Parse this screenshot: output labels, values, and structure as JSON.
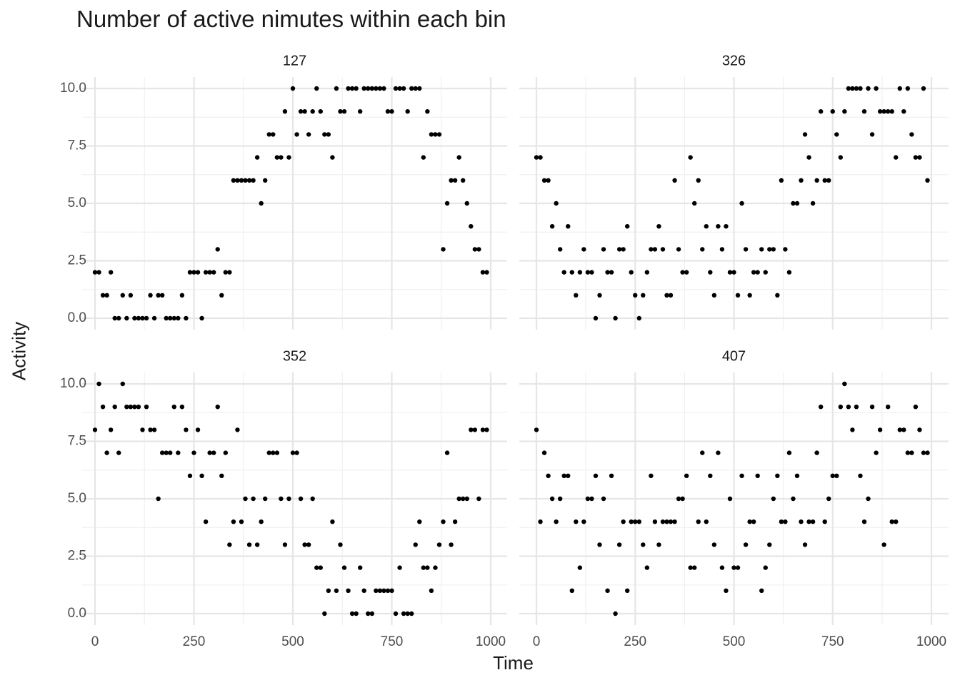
{
  "figure": {
    "title": "Number of active nimutes within each bin",
    "xlabel": "Time",
    "ylabel": "Activity"
  },
  "colors": {
    "background": "#ffffff",
    "grid_major": "#e6e6e6",
    "grid_minor": "#f0f0f0",
    "points": "#000000",
    "text": "#4d4d4d"
  },
  "chart_data": {
    "type": "scatter",
    "faceted": true,
    "grid": true,
    "xlim": [
      0,
      1000
    ],
    "ylim": [
      0,
      10
    ],
    "xticks": [
      0,
      250,
      500,
      750,
      1000
    ],
    "yticks": [
      0.0,
      2.5,
      5.0,
      7.5,
      10.0
    ],
    "xtick_labels": [
      "0",
      "250",
      "500",
      "750",
      "1000"
    ],
    "ytick_labels": [
      "0.0",
      "2.5",
      "5.0",
      "7.5",
      "10.0"
    ],
    "facets": [
      {
        "label": "127",
        "x": [
          0,
          10,
          20,
          30,
          40,
          50,
          60,
          70,
          80,
          90,
          100,
          110,
          120,
          130,
          140,
          150,
          160,
          170,
          180,
          190,
          200,
          210,
          220,
          230,
          240,
          250,
          260,
          270,
          280,
          290,
          300,
          310,
          320,
          330,
          340,
          350,
          360,
          370,
          380,
          390,
          400,
          410,
          420,
          430,
          440,
          450,
          460,
          470,
          480,
          490,
          500,
          510,
          520,
          530,
          540,
          550,
          560,
          570,
          580,
          590,
          600,
          610,
          620,
          630,
          640,
          650,
          660,
          670,
          680,
          690,
          700,
          710,
          720,
          730,
          740,
          750,
          760,
          770,
          780,
          790,
          800,
          810,
          820,
          830,
          840,
          850,
          860,
          870,
          880,
          890,
          900,
          910,
          920,
          930,
          940,
          950,
          960,
          970,
          980,
          990
        ],
        "y": [
          2,
          2,
          1,
          1,
          2,
          0,
          0,
          1,
          0,
          1,
          0,
          0,
          0,
          0,
          1,
          0,
          1,
          1,
          0,
          0,
          0,
          0,
          1,
          0,
          2,
          2,
          2,
          0,
          2,
          2,
          2,
          3,
          1,
          2,
          2,
          6,
          6,
          6,
          6,
          6,
          6,
          7,
          5,
          6,
          8,
          8,
          7,
          7,
          9,
          7,
          10,
          8,
          9,
          9,
          8,
          9,
          10,
          9,
          8,
          8,
          7,
          10,
          9,
          9,
          10,
          10,
          10,
          9,
          10,
          10,
          10,
          10,
          10,
          10,
          9,
          9,
          10,
          10,
          10,
          9,
          10,
          10,
          10,
          7,
          9,
          8,
          8,
          8,
          3,
          5,
          6,
          6,
          7,
          6,
          5,
          4,
          3,
          3,
          2,
          2
        ]
      },
      {
        "label": "326",
        "x": [
          0,
          10,
          20,
          30,
          40,
          50,
          60,
          70,
          80,
          90,
          100,
          110,
          120,
          130,
          140,
          150,
          160,
          170,
          180,
          190,
          200,
          210,
          220,
          230,
          240,
          250,
          260,
          270,
          280,
          290,
          300,
          310,
          320,
          330,
          340,
          350,
          360,
          370,
          380,
          390,
          400,
          410,
          420,
          430,
          440,
          450,
          460,
          470,
          480,
          490,
          500,
          510,
          520,
          530,
          540,
          550,
          560,
          570,
          580,
          590,
          600,
          610,
          620,
          630,
          640,
          650,
          660,
          670,
          680,
          690,
          700,
          710,
          720,
          730,
          740,
          750,
          760,
          770,
          780,
          790,
          800,
          810,
          820,
          830,
          840,
          850,
          860,
          870,
          880,
          890,
          900,
          910,
          920,
          930,
          940,
          950,
          960,
          970,
          980,
          990
        ],
        "y": [
          7,
          7,
          6,
          6,
          4,
          5,
          3,
          2,
          4,
          2,
          1,
          2,
          3,
          2,
          2,
          0,
          1,
          3,
          2,
          2,
          0,
          3,
          3,
          4,
          2,
          1,
          0,
          1,
          2,
          3,
          3,
          4,
          3,
          1,
          1,
          6,
          3,
          2,
          2,
          7,
          5,
          6,
          3,
          4,
          2,
          1,
          4,
          3,
          4,
          2,
          2,
          1,
          5,
          3,
          1,
          2,
          2,
          3,
          2,
          3,
          3,
          1,
          6,
          3,
          2,
          5,
          5,
          6,
          8,
          7,
          5,
          6,
          9,
          6,
          6,
          9,
          8,
          7,
          9,
          10,
          10,
          10,
          10,
          9,
          10,
          8,
          10,
          9,
          9,
          9,
          9,
          7,
          10,
          9,
          10,
          8,
          7,
          7,
          10,
          6
        ]
      },
      {
        "label": "352",
        "x": [
          0,
          10,
          20,
          30,
          40,
          50,
          60,
          70,
          80,
          90,
          100,
          110,
          120,
          130,
          140,
          150,
          160,
          170,
          180,
          190,
          200,
          210,
          220,
          230,
          240,
          250,
          260,
          270,
          280,
          290,
          300,
          310,
          320,
          330,
          340,
          350,
          360,
          370,
          380,
          390,
          400,
          410,
          420,
          430,
          440,
          450,
          460,
          470,
          480,
          490,
          500,
          510,
          520,
          530,
          540,
          550,
          560,
          570,
          580,
          590,
          600,
          610,
          620,
          630,
          640,
          650,
          660,
          670,
          680,
          690,
          700,
          710,
          720,
          730,
          740,
          750,
          760,
          770,
          780,
          790,
          800,
          810,
          820,
          830,
          840,
          850,
          860,
          870,
          880,
          890,
          900,
          910,
          920,
          930,
          940,
          950,
          960,
          970,
          980,
          990
        ],
        "y": [
          8,
          10,
          9,
          7,
          8,
          9,
          7,
          10,
          9,
          9,
          9,
          9,
          8,
          9,
          8,
          8,
          5,
          7,
          7,
          7,
          9,
          7,
          9,
          8,
          6,
          7,
          8,
          6,
          4,
          7,
          7,
          9,
          6,
          7,
          3,
          4,
          8,
          4,
          5,
          3,
          5,
          3,
          4,
          5,
          7,
          7,
          7,
          5,
          3,
          5,
          7,
          7,
          5,
          3,
          3,
          5,
          2,
          2,
          0,
          1,
          4,
          1,
          3,
          2,
          1,
          0,
          0,
          2,
          1,
          0,
          0,
          1,
          1,
          1,
          1,
          1,
          0,
          2,
          0,
          0,
          0,
          3,
          4,
          2,
          2,
          1,
          2,
          3,
          4,
          7,
          3,
          4,
          5,
          5,
          5,
          8,
          8,
          5,
          8,
          8
        ]
      },
      {
        "label": "407",
        "x": [
          0,
          10,
          20,
          30,
          40,
          50,
          60,
          70,
          80,
          90,
          100,
          110,
          120,
          130,
          140,
          150,
          160,
          170,
          180,
          190,
          200,
          210,
          220,
          230,
          240,
          250,
          260,
          270,
          280,
          290,
          300,
          310,
          320,
          330,
          340,
          350,
          360,
          370,
          380,
          390,
          400,
          410,
          420,
          430,
          440,
          450,
          460,
          470,
          480,
          490,
          500,
          510,
          520,
          530,
          540,
          550,
          560,
          570,
          580,
          590,
          600,
          610,
          620,
          630,
          640,
          650,
          660,
          670,
          680,
          690,
          700,
          710,
          720,
          730,
          740,
          750,
          760,
          770,
          780,
          790,
          800,
          810,
          820,
          830,
          840,
          850,
          860,
          870,
          880,
          890,
          900,
          910,
          920,
          930,
          940,
          950,
          960,
          970,
          980,
          990
        ],
        "y": [
          8,
          4,
          7,
          6,
          5,
          4,
          5,
          6,
          6,
          1,
          4,
          2,
          4,
          5,
          5,
          6,
          3,
          5,
          1,
          6,
          0,
          3,
          4,
          1,
          4,
          4,
          4,
          3,
          2,
          6,
          4,
          3,
          4,
          4,
          4,
          4,
          5,
          5,
          6,
          2,
          2,
          4,
          7,
          4,
          6,
          3,
          7,
          2,
          1,
          5,
          2,
          2,
          6,
          3,
          4,
          4,
          6,
          1,
          2,
          3,
          5,
          6,
          4,
          4,
          7,
          5,
          6,
          4,
          3,
          4,
          4,
          7,
          9,
          4,
          5,
          6,
          6,
          9,
          10,
          9,
          8,
          9,
          6,
          4,
          5,
          9,
          7,
          8,
          3,
          9,
          4,
          4,
          8,
          8,
          7,
          7,
          9,
          8,
          7,
          7
        ]
      }
    ]
  }
}
